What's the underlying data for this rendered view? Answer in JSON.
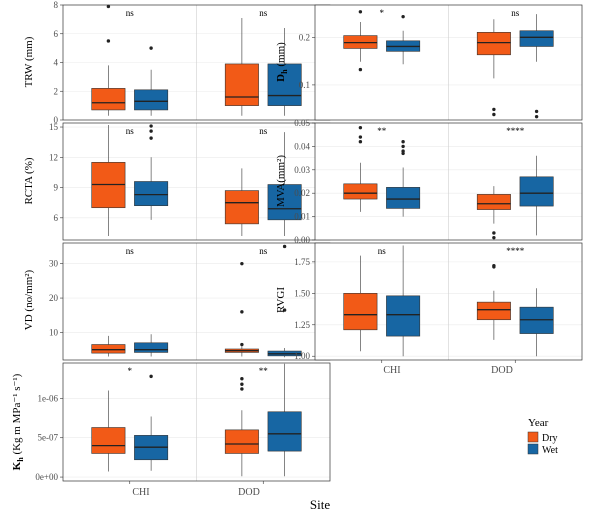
{
  "chart_data": {
    "type": "box",
    "xlabel": "Site",
    "categories": [
      "CHI",
      "DOD"
    ],
    "legend": {
      "title": "Year",
      "placement": "right",
      "entries": [
        {
          "name": "Dry",
          "color": "#f25a17"
        },
        {
          "name": "Wet",
          "color": "#1766a3"
        }
      ]
    },
    "panels": [
      {
        "id": "trw",
        "ylabel": "TRW (mm)",
        "ylim": [
          0,
          8
        ],
        "ticks": [
          0,
          2,
          4,
          6,
          8
        ],
        "tick_labels": [
          "0",
          "2",
          "4",
          "6",
          "8"
        ],
        "significance": [
          "ns",
          "ns"
        ],
        "boxes": [
          {
            "site": "CHI",
            "year": "Dry",
            "min": 0.3,
            "q1": 0.7,
            "median": 1.2,
            "q3": 2.2,
            "max": 3.8,
            "outliers": [
              5.5,
              7.9
            ]
          },
          {
            "site": "CHI",
            "year": "Wet",
            "min": 0.3,
            "q1": 0.7,
            "median": 1.3,
            "q3": 2.1,
            "max": 3.5,
            "outliers": [
              5.0
            ]
          },
          {
            "site": "DOD",
            "year": "Dry",
            "min": 0.3,
            "q1": 1.0,
            "median": 1.6,
            "q3": 3.9,
            "max": 7.1,
            "outliers": []
          },
          {
            "site": "DOD",
            "year": "Wet",
            "min": 0.3,
            "q1": 1.0,
            "median": 1.7,
            "q3": 3.9,
            "max": 6.4,
            "outliers": []
          }
        ]
      },
      {
        "id": "dh",
        "ylabel": "D",
        "ylabel_sub": "h",
        "ylabel_unit": " (mm)",
        "scale": "log",
        "ylim": [
          0.06,
          0.32
        ],
        "ticks": [
          0.1,
          0.2
        ],
        "tick_labels": [
          "0.1",
          "0.2"
        ],
        "significance": [
          "*",
          "ns"
        ],
        "boxes": [
          {
            "site": "CHI",
            "year": "Dry",
            "min": 0.14,
            "q1": 0.17,
            "median": 0.185,
            "q3": 0.205,
            "max": 0.25,
            "outliers": [
              0.125,
              0.29
            ]
          },
          {
            "site": "CHI",
            "year": "Wet",
            "min": 0.135,
            "q1": 0.163,
            "median": 0.175,
            "q3": 0.19,
            "max": 0.22,
            "outliers": [
              0.27
            ]
          },
          {
            "site": "DOD",
            "year": "Dry",
            "min": 0.11,
            "q1": 0.155,
            "median": 0.185,
            "q3": 0.215,
            "max": 0.26,
            "outliers": [
              0.07,
              0.065
            ]
          },
          {
            "site": "DOD",
            "year": "Wet",
            "min": 0.14,
            "q1": 0.175,
            "median": 0.2,
            "q3": 0.22,
            "max": 0.28,
            "outliers": [
              0.068,
              0.063
            ]
          }
        ]
      },
      {
        "id": "rcta",
        "ylabel": "RCTA (%)",
        "ylim": [
          3.8,
          15.4
        ],
        "ticks": [
          6,
          9,
          12,
          15
        ],
        "tick_labels": [
          "6",
          "9",
          "12",
          "15"
        ],
        "significance": [
          "ns",
          "ns"
        ],
        "boxes": [
          {
            "site": "CHI",
            "year": "Dry",
            "min": 4.2,
            "q1": 7.0,
            "median": 9.3,
            "q3": 11.5,
            "max": 15.2,
            "outliers": []
          },
          {
            "site": "CHI",
            "year": "Wet",
            "min": 5.8,
            "q1": 7.2,
            "median": 8.3,
            "q3": 9.6,
            "max": 12.0,
            "outliers": [
              13.9,
              14.6,
              15.1
            ]
          },
          {
            "site": "DOD",
            "year": "Dry",
            "min": 4.2,
            "q1": 5.4,
            "median": 7.5,
            "q3": 8.7,
            "max": 10.9,
            "outliers": []
          },
          {
            "site": "DOD",
            "year": "Wet",
            "min": 4.2,
            "q1": 5.8,
            "median": 6.9,
            "q3": 9.3,
            "max": 14.5,
            "outliers": []
          }
        ]
      },
      {
        "id": "mva",
        "ylabel": "MVA(mm²)",
        "ylim": [
          0,
          0.05
        ],
        "ticks": [
          0,
          0.01,
          0.02,
          0.03,
          0.04,
          0.05
        ],
        "tick_labels": [
          "0.00",
          "0.01",
          "0.02",
          "0.03",
          "0.04",
          "0.05"
        ],
        "significance": [
          "**",
          "****"
        ],
        "boxes": [
          {
            "site": "CHI",
            "year": "Dry",
            "min": 0.012,
            "q1": 0.0175,
            "median": 0.02,
            "q3": 0.024,
            "max": 0.033,
            "outliers": [
              0.042,
              0.044,
              0.048
            ]
          },
          {
            "site": "CHI",
            "year": "Wet",
            "min": 0.01,
            "q1": 0.0135,
            "median": 0.0175,
            "q3": 0.0225,
            "max": 0.031,
            "outliers": [
              0.037,
              0.038,
              0.04,
              0.042
            ]
          },
          {
            "site": "DOD",
            "year": "Dry",
            "min": 0.007,
            "q1": 0.013,
            "median": 0.0155,
            "q3": 0.0195,
            "max": 0.023,
            "outliers": [
              0.001,
              0.003
            ]
          },
          {
            "site": "DOD",
            "year": "Wet",
            "min": 0.002,
            "q1": 0.0145,
            "median": 0.02,
            "q3": 0.027,
            "max": 0.036,
            "outliers": []
          }
        ]
      },
      {
        "id": "vd",
        "ylabel": "VD (no/mm²)",
        "ylim": [
          2,
          36
        ],
        "ticks": [
          10,
          20,
          30
        ],
        "tick_labels": [
          "10",
          "20",
          "30"
        ],
        "significance": [
          "ns",
          "ns"
        ],
        "boxes": [
          {
            "site": "CHI",
            "year": "Dry",
            "min": 3,
            "q1": 4,
            "median": 5,
            "q3": 6.5,
            "max": 9,
            "outliers": []
          },
          {
            "site": "CHI",
            "year": "Wet",
            "min": 3,
            "q1": 4.2,
            "median": 5,
            "q3": 7,
            "max": 9.5,
            "outliers": []
          },
          {
            "site": "DOD",
            "year": "Dry",
            "min": 3,
            "q1": 4.2,
            "median": 4.7,
            "q3": 5.2,
            "max": 6,
            "outliers": [
              6.5,
              16,
              30
            ]
          },
          {
            "site": "DOD",
            "year": "Wet",
            "min": 2.8,
            "q1": 3.2,
            "median": 3.8,
            "q3": 4.6,
            "max": 5.5,
            "outliers": [
              16.5,
              35
            ]
          }
        ]
      },
      {
        "id": "rvgi",
        "ylabel": "RVGI",
        "ylim": [
          0.97,
          1.9
        ],
        "ticks": [
          1.0,
          1.25,
          1.5,
          1.75
        ],
        "tick_labels": [
          "1.00",
          "1.25",
          "1.50",
          "1.75"
        ],
        "significance": [
          "ns",
          "****"
        ],
        "boxes": [
          {
            "site": "CHI",
            "year": "Dry",
            "min": 1.04,
            "q1": 1.21,
            "median": 1.33,
            "q3": 1.5,
            "max": 1.8,
            "outliers": []
          },
          {
            "site": "CHI",
            "year": "Wet",
            "min": 1.0,
            "q1": 1.16,
            "median": 1.33,
            "q3": 1.48,
            "max": 1.88,
            "outliers": []
          },
          {
            "site": "DOD",
            "year": "Dry",
            "min": 1.13,
            "q1": 1.29,
            "median": 1.37,
            "q3": 1.43,
            "max": 1.52,
            "outliers": [
              1.71,
              1.72
            ]
          },
          {
            "site": "DOD",
            "year": "Wet",
            "min": 1.0,
            "q1": 1.18,
            "median": 1.29,
            "q3": 1.39,
            "max": 1.54,
            "outliers": []
          }
        ]
      },
      {
        "id": "kh",
        "ylabel": "K",
        "ylabel_sub": "h",
        "ylabel_unit": " (Kg m MPa⁻¹ s⁻¹)",
        "ylim": [
          -5e-08,
          1.45e-06
        ],
        "ticks": [
          0,
          5e-07,
          1e-06
        ],
        "tick_labels": [
          "0e+00",
          "5e-07",
          "1e-06"
        ],
        "significance": [
          "*",
          "**"
        ],
        "boxes": [
          {
            "site": "CHI",
            "year": "Dry",
            "min": 7e-08,
            "q1": 3e-07,
            "median": 4e-07,
            "q3": 6.3e-07,
            "max": 1.1e-06,
            "outliers": []
          },
          {
            "site": "CHI",
            "year": "Wet",
            "min": 8e-08,
            "q1": 2.2e-07,
            "median": 3.8e-07,
            "q3": 5.3e-07,
            "max": 7.7e-07,
            "outliers": [
              1.28e-06
            ]
          },
          {
            "site": "DOD",
            "year": "Dry",
            "min": 1e-08,
            "q1": 3e-07,
            "median": 4.2e-07,
            "q3": 6e-07,
            "max": 8.5e-07,
            "outliers": [
              1.12e-06,
              1.18e-06,
              1.25e-06
            ]
          },
          {
            "site": "DOD",
            "year": "Wet",
            "min": 1e-08,
            "q1": 3.3e-07,
            "median": 5.5e-07,
            "q3": 8.3e-07,
            "max": 1.44e-06,
            "outliers": []
          }
        ]
      }
    ]
  }
}
